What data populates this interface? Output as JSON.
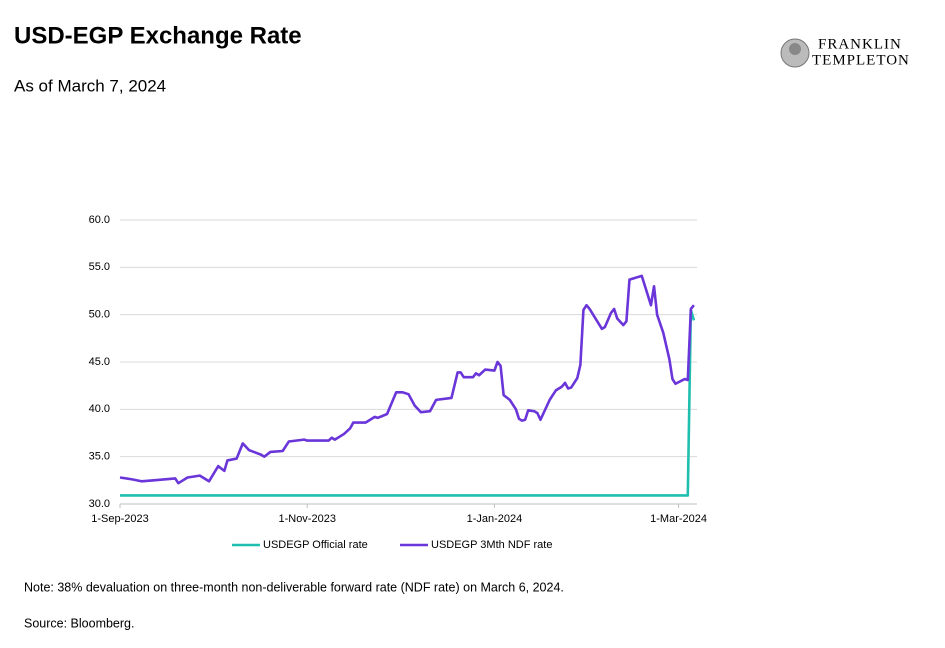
{
  "chart_data": {
    "type": "line",
    "title": "USD-EGP Exchange Rate",
    "subtitle": "As of March 7, 2024",
    "logo": [
      "FRANKLIN",
      "TEMPLETON"
    ],
    "note": "Note: 38% devaluation on three-month non-deliverable forward rate (NDF rate) on March 6, 2024.",
    "source": "Source: Bloomberg.",
    "x": [
      "2023-09-01",
      "2023-09-05",
      "2023-09-08",
      "2023-09-12",
      "2023-09-19",
      "2023-09-20",
      "2023-09-23",
      "2023-09-27",
      "2023-09-30",
      "2023-10-03",
      "2023-10-05",
      "2023-10-06",
      "2023-10-09",
      "2023-10-11",
      "2023-10-13",
      "2023-10-17",
      "2023-10-18",
      "2023-10-20",
      "2023-10-24",
      "2023-10-26",
      "2023-10-31",
      "2023-11-01",
      "2023-11-08",
      "2023-11-09",
      "2023-11-10",
      "2023-11-13",
      "2023-11-15",
      "2023-11-16",
      "2023-11-20",
      "2023-11-23",
      "2023-11-24",
      "2023-11-27",
      "2023-11-30",
      "2023-12-02",
      "2023-12-04",
      "2023-12-06",
      "2023-12-08",
      "2023-12-11",
      "2023-12-13",
      "2023-12-18",
      "2023-12-20",
      "2023-12-21",
      "2023-12-22",
      "2023-12-25",
      "2023-12-26",
      "2023-12-27",
      "2023-12-29",
      "2024-01-01",
      "2024-01-02",
      "2024-01-03",
      "2024-01-04",
      "2024-01-06",
      "2024-01-08",
      "2024-01-09",
      "2024-01-10",
      "2024-01-11",
      "2024-01-12",
      "2024-01-14",
      "2024-01-15",
      "2024-01-16",
      "2024-01-17",
      "2024-01-19",
      "2024-01-21",
      "2024-01-23",
      "2024-01-24",
      "2024-01-25",
      "2024-01-26",
      "2024-01-28",
      "2024-01-29",
      "2024-01-30",
      "2024-01-31",
      "2024-02-01",
      "2024-02-05",
      "2024-02-06",
      "2024-02-08",
      "2024-02-09",
      "2024-02-10",
      "2024-02-12",
      "2024-02-13",
      "2024-02-14",
      "2024-02-18",
      "2024-02-21",
      "2024-02-22",
      "2024-02-23",
      "2024-02-25",
      "2024-02-27",
      "2024-02-28",
      "2024-02-29",
      "2024-03-03",
      "2024-03-04",
      "2024-03-05",
      "2024-03-06"
    ],
    "series": [
      {
        "name": "USDEGP Official rate",
        "color": "#1fbfb0",
        "values": [
          30.9,
          30.9,
          30.9,
          30.9,
          30.9,
          30.9,
          30.9,
          30.9,
          30.9,
          30.9,
          30.9,
          30.9,
          30.9,
          30.9,
          30.9,
          30.9,
          30.9,
          30.9,
          30.9,
          30.9,
          30.9,
          30.9,
          30.9,
          30.9,
          30.9,
          30.9,
          30.9,
          30.9,
          30.9,
          30.9,
          30.9,
          30.9,
          30.9,
          30.9,
          30.9,
          30.9,
          30.9,
          30.9,
          30.9,
          30.9,
          30.9,
          30.9,
          30.9,
          30.9,
          30.9,
          30.9,
          30.9,
          30.9,
          30.9,
          30.9,
          30.9,
          30.9,
          30.9,
          30.9,
          30.9,
          30.9,
          30.9,
          30.9,
          30.9,
          30.9,
          30.9,
          30.9,
          30.9,
          30.9,
          30.9,
          30.9,
          30.9,
          30.9,
          30.9,
          30.9,
          30.9,
          30.9,
          30.9,
          30.9,
          30.9,
          30.9,
          30.9,
          30.9,
          30.9,
          30.9,
          30.9,
          30.9,
          30.9,
          30.9,
          30.9,
          30.9,
          30.9,
          30.9,
          30.9,
          30.9,
          50.5,
          49.4
        ]
      },
      {
        "name": "USDEGP 3Mth NDF rate",
        "color": "#6a35d9",
        "values": [
          32.8,
          32.6,
          32.4,
          32.5,
          32.7,
          32.2,
          32.8,
          33.0,
          32.4,
          34.0,
          33.5,
          34.6,
          34.8,
          36.4,
          35.7,
          35.2,
          35.0,
          35.5,
          35.6,
          36.6,
          36.8,
          36.7,
          36.7,
          37.0,
          36.8,
          37.4,
          38.0,
          38.6,
          38.6,
          39.2,
          39.1,
          39.5,
          41.8,
          41.8,
          41.6,
          40.4,
          39.7,
          39.8,
          41.0,
          41.2,
          43.9,
          43.9,
          43.4,
          43.4,
          43.8,
          43.6,
          44.2,
          44.1,
          45.0,
          44.6,
          41.5,
          41.0,
          40.0,
          39.0,
          38.8,
          38.9,
          39.9,
          39.8,
          39.6,
          38.9,
          39.6,
          41.0,
          42.0,
          42.4,
          42.8,
          42.2,
          42.3,
          43.3,
          44.7,
          50.5,
          51.0,
          50.6,
          48.5,
          48.7,
          50.2,
          50.6,
          49.6,
          48.9,
          49.3,
          53.7,
          54.1,
          51.0,
          53.0,
          50.0,
          48.1,
          45.3,
          43.2,
          42.7,
          43.2,
          43.1,
          50.6,
          51.0
        ]
      }
    ],
    "xlim": [
      "2023-09-01",
      "2024-03-07"
    ],
    "xticks": [
      {
        "value": "2023-09-01",
        "label": "1-Sep-2023"
      },
      {
        "value": "2023-11-01",
        "label": "1-Nov-2023"
      },
      {
        "value": "2024-01-01",
        "label": "1-Jan-2024"
      },
      {
        "value": "2024-03-01",
        "label": "1-Mar-2024"
      }
    ],
    "ylim": [
      30,
      60
    ],
    "yticks": [
      {
        "value": 30,
        "label": "30.0"
      },
      {
        "value": 35,
        "label": "35.0"
      },
      {
        "value": 40,
        "label": "40.0"
      },
      {
        "value": 45,
        "label": "45.0"
      },
      {
        "value": 50,
        "label": "50.0"
      },
      {
        "value": 55,
        "label": "55.0"
      },
      {
        "value": 60,
        "label": "60.0"
      }
    ],
    "grid": true,
    "legend": "bottom"
  }
}
